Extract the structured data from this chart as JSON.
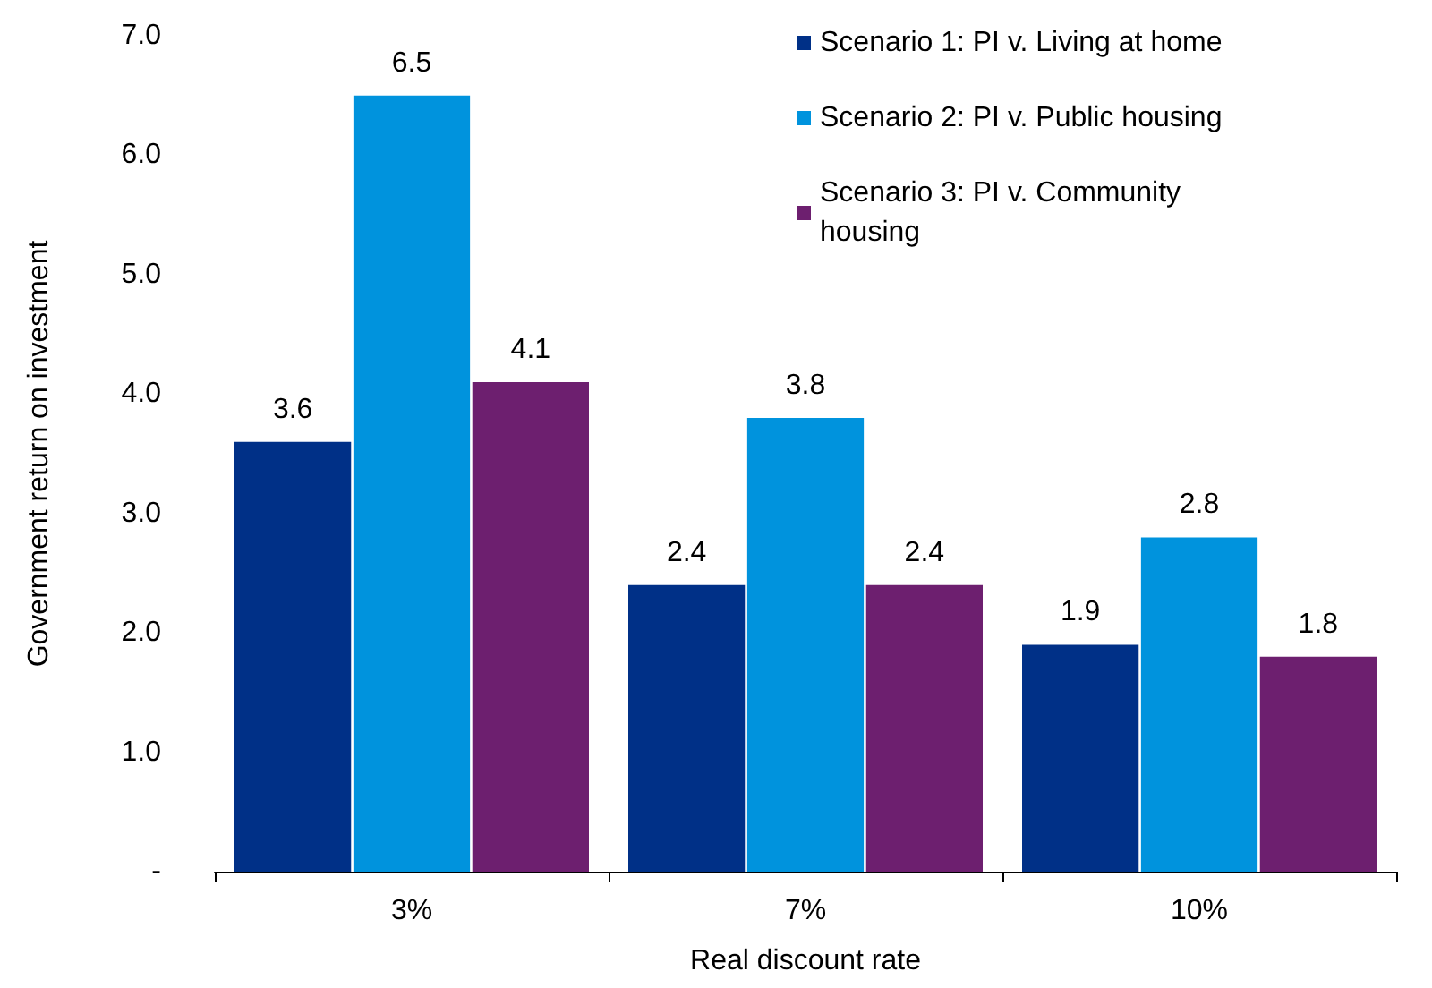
{
  "chart_data": {
    "type": "bar",
    "xlabel": "Real discount rate",
    "ylabel": "Government return on investment",
    "categories": [
      "3%",
      "7%",
      "10%"
    ],
    "series": [
      {
        "name": "Scenario 1: PI v. Living at home",
        "color": "#003087",
        "values": [
          3.6,
          2.4,
          1.9
        ]
      },
      {
        "name": "Scenario 2: PI v. Public housing",
        "color": "#0093dd",
        "values": [
          6.5,
          3.8,
          2.8
        ]
      },
      {
        "name": "Scenario 3: PI v. Community housing",
        "color": "#6d1f6f",
        "values": [
          4.1,
          2.4,
          1.8
        ]
      }
    ],
    "ylim": [
      0,
      7
    ],
    "yticks": [
      {
        "value": 0,
        "label": "-"
      },
      {
        "value": 1,
        "label": "1.0"
      },
      {
        "value": 2,
        "label": "2.0"
      },
      {
        "value": 3,
        "label": "3.0"
      },
      {
        "value": 4,
        "label": "4.0"
      },
      {
        "value": 5,
        "label": "5.0"
      },
      {
        "value": 6,
        "label": "6.0"
      },
      {
        "value": 7,
        "label": "7.0"
      }
    ],
    "data_labels": true,
    "grid": false,
    "legend": "top right"
  }
}
